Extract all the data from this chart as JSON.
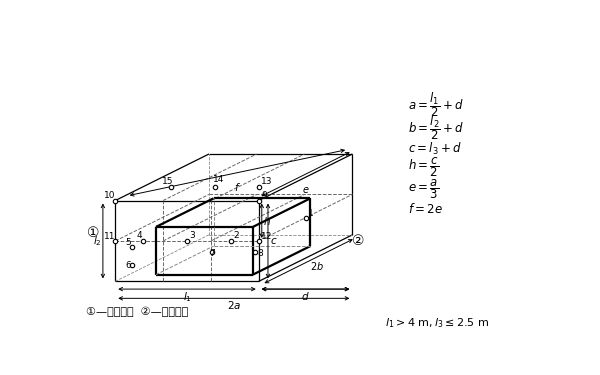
{
  "bg_color": "#ffffff",
  "line_color": "#000000",
  "formulas": [
    "$a=\\dfrac{l_1}{2}+d$",
    "$b=\\dfrac{l_2}{2}+d$",
    "$c=l_3+d$",
    "$h=\\dfrac{c}{2}$",
    "$e=\\dfrac{a}{3}$",
    "$f=2e$"
  ],
  "footnote1": "①—发动机側  ②—发电机側",
  "footnote2": "$l_1>4$ m$,l_3\\leq2.5$ m",
  "circ1": "①",
  "circ2": "②"
}
